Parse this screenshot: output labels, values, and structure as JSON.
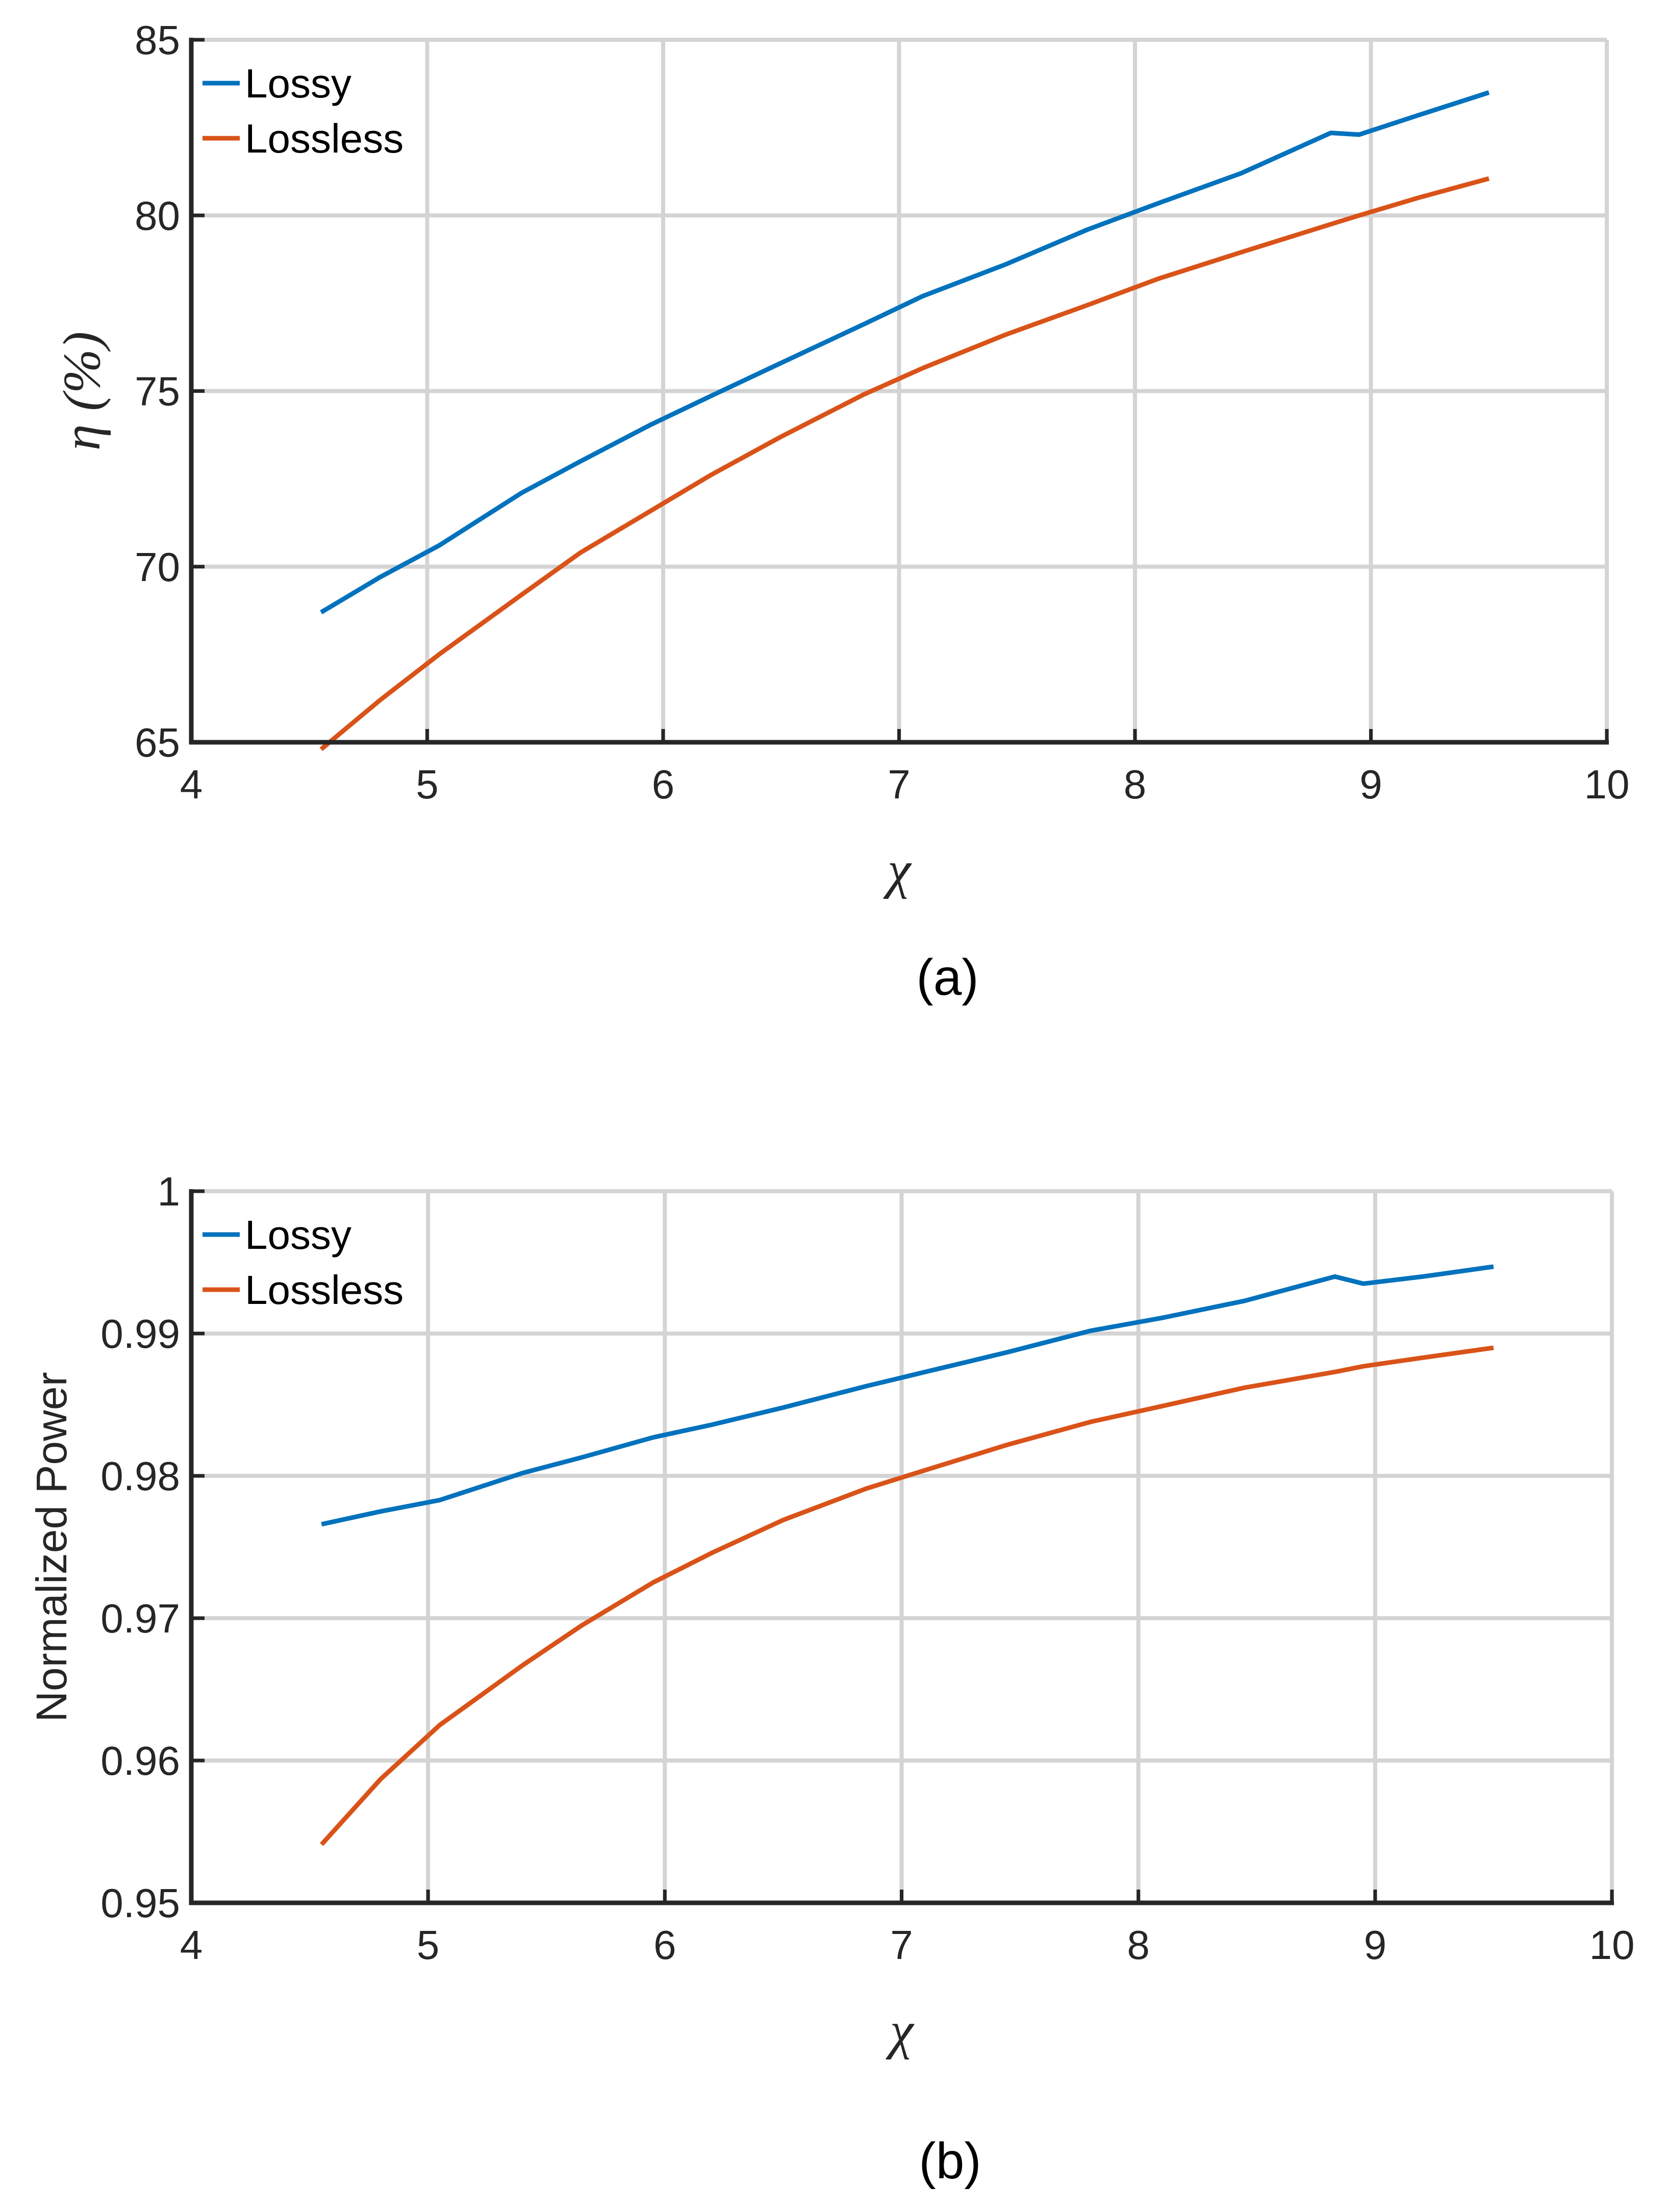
{
  "chart_data": [
    {
      "type": "line",
      "caption": "(a)",
      "title": "",
      "xlabel": "χ",
      "ylabel": "η (%)",
      "xlim": [
        4,
        10
      ],
      "ylim": [
        65,
        85
      ],
      "xticks": [
        "4",
        "5",
        "6",
        "7",
        "8",
        "9",
        "10"
      ],
      "yticks": [
        "65",
        "70",
        "75",
        "80",
        "85"
      ],
      "grid": true,
      "legend_position": "top-left",
      "series": [
        {
          "name": "Lossy",
          "color": "#0072BD",
          "x": [
            4.55,
            4.8,
            5.05,
            5.4,
            5.65,
            5.95,
            6.2,
            6.5,
            6.85,
            7.1,
            7.45,
            7.8,
            8.1,
            8.45,
            8.83,
            8.95,
            9.2,
            9.5
          ],
          "y": [
            68.7,
            69.7,
            70.6,
            72.1,
            73.0,
            74.05,
            74.85,
            75.8,
            76.9,
            77.7,
            78.6,
            79.6,
            80.35,
            81.2,
            82.35,
            82.3,
            82.85,
            83.5
          ]
        },
        {
          "name": "Lossless",
          "color": "#D95319",
          "x": [
            4.55,
            4.8,
            5.05,
            5.4,
            5.65,
            5.95,
            6.2,
            6.5,
            6.85,
            7.1,
            7.45,
            7.8,
            8.1,
            8.45,
            8.83,
            8.95,
            9.2,
            9.5
          ],
          "y": [
            64.8,
            66.2,
            67.5,
            69.2,
            70.4,
            71.6,
            72.6,
            73.7,
            74.9,
            75.65,
            76.6,
            77.45,
            78.2,
            78.95,
            79.75,
            80.0,
            80.5,
            81.05
          ]
        }
      ]
    },
    {
      "type": "line",
      "caption": "(b)",
      "title": "",
      "xlabel": "χ",
      "ylabel": "Normalized Power",
      "xlim": [
        4,
        10
      ],
      "ylim": [
        0.95,
        1.0
      ],
      "xticks": [
        "4",
        "5",
        "6",
        "7",
        "8",
        "9",
        "10"
      ],
      "yticks": [
        "0.95",
        "0.96",
        "0.97",
        "0.98",
        "0.99",
        "1"
      ],
      "grid": true,
      "legend_position": "top-left",
      "series": [
        {
          "name": "Lossy",
          "color": "#0072BD",
          "x": [
            4.55,
            4.8,
            5.05,
            5.4,
            5.65,
            5.95,
            6.2,
            6.5,
            6.85,
            7.1,
            7.45,
            7.8,
            8.1,
            8.45,
            8.83,
            8.95,
            9.2,
            9.5
          ],
          "y": [
            0.9766,
            0.9775,
            0.9783,
            0.9802,
            0.9813,
            0.9827,
            0.9836,
            0.9848,
            0.9863,
            0.9873,
            0.9887,
            0.9902,
            0.9911,
            0.9923,
            0.994,
            0.9935,
            0.994,
            0.9947
          ]
        },
        {
          "name": "Lossless",
          "color": "#D95319",
          "x": [
            4.55,
            4.8,
            5.05,
            5.4,
            5.65,
            5.95,
            6.2,
            6.5,
            6.85,
            7.1,
            7.45,
            7.8,
            8.1,
            8.45,
            8.83,
            8.95,
            9.2,
            9.5
          ],
          "y": [
            0.9541,
            0.9587,
            0.9625,
            0.9667,
            0.9695,
            0.9725,
            0.9746,
            0.9769,
            0.9791,
            0.9804,
            0.9822,
            0.9838,
            0.9849,
            0.9862,
            0.9873,
            0.9877,
            0.9883,
            0.989
          ]
        }
      ]
    }
  ]
}
